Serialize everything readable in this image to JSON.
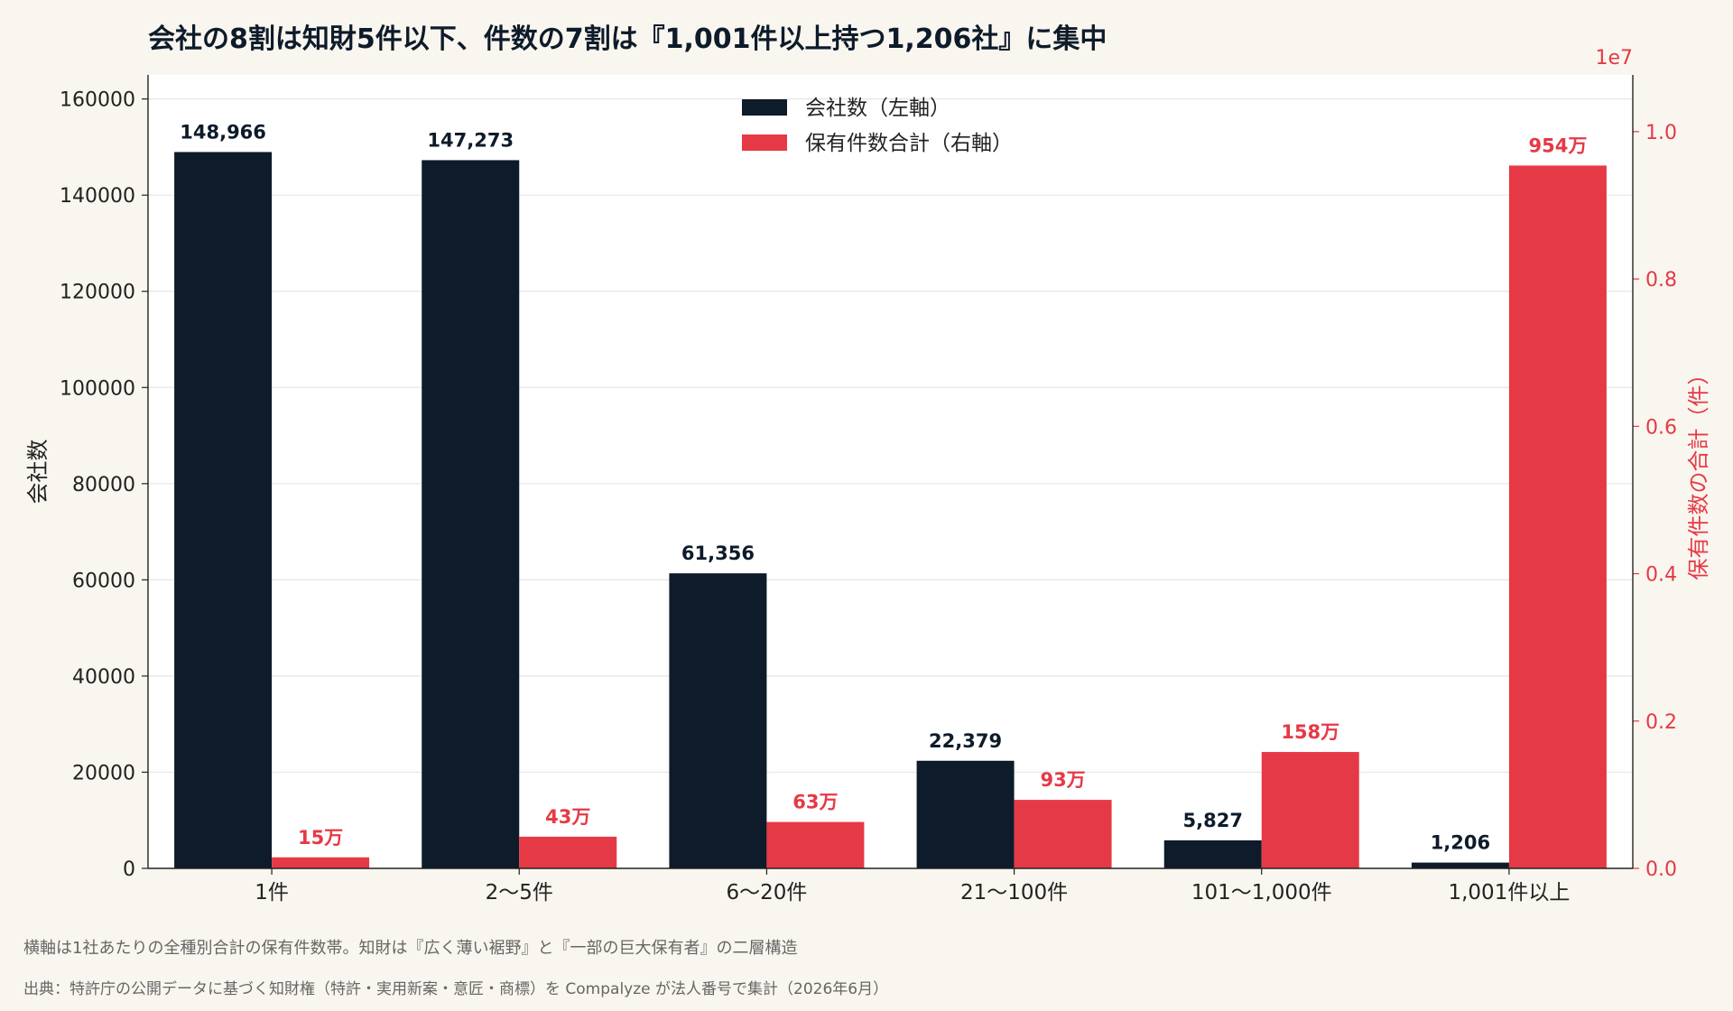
{
  "caption": "横軸は1社あたりの全種別合計の保有件数帯。知財は『広く薄い裾野』と『一部の巨大保有者』の二層構造",
  "source": "出典：特許庁の公開データに基づく知財権（特許・実用新案・意匠・商標）を Compalyze が法人番号で集計（2026年6月）",
  "chart_data": {
    "type": "bar",
    "title": "会社の8割は知財5件以下、件数の7割は『1,001件以上持つ1,206社』に集中",
    "categories": [
      "1件",
      "2〜5件",
      "6〜20件",
      "21〜100件",
      "101〜1,000件",
      "1,001件以上"
    ],
    "series": [
      {
        "name": "会社数（左軸）",
        "axis": "left",
        "color": "#0d1b2a",
        "values": [
          148966,
          147273,
          61356,
          22379,
          5827,
          1206
        ],
        "labels": [
          "148,966",
          "147,273",
          "61,356",
          "22,379",
          "5,827",
          "1,206"
        ]
      },
      {
        "name": "保有件数合計（右軸）",
        "axis": "right",
        "color": "#e63946",
        "values": [
          150000,
          430000,
          630000,
          930000,
          1580000,
          9540000
        ],
        "labels": [
          "15万",
          "43万",
          "63万",
          "93万",
          "158万",
          "954万"
        ]
      }
    ],
    "y_left": {
      "label": "会社数",
      "lim": [
        0,
        165000
      ],
      "ticks": [
        0,
        20000,
        40000,
        60000,
        80000,
        100000,
        120000,
        140000,
        160000
      ],
      "tick_labels": [
        "0",
        "20000",
        "40000",
        "60000",
        "80000",
        "100000",
        "120000",
        "140000",
        "160000"
      ]
    },
    "y_right": {
      "label": "保有件数の合計（件）",
      "lim": [
        0,
        10770000
      ],
      "offset_text": "1e7",
      "ticks": [
        0,
        2000000,
        4000000,
        6000000,
        8000000,
        10000000
      ],
      "tick_labels": [
        "0.0",
        "0.2",
        "0.4",
        "0.6",
        "0.8",
        "1.0"
      ]
    },
    "grid": true,
    "legend_position": "top-center"
  }
}
